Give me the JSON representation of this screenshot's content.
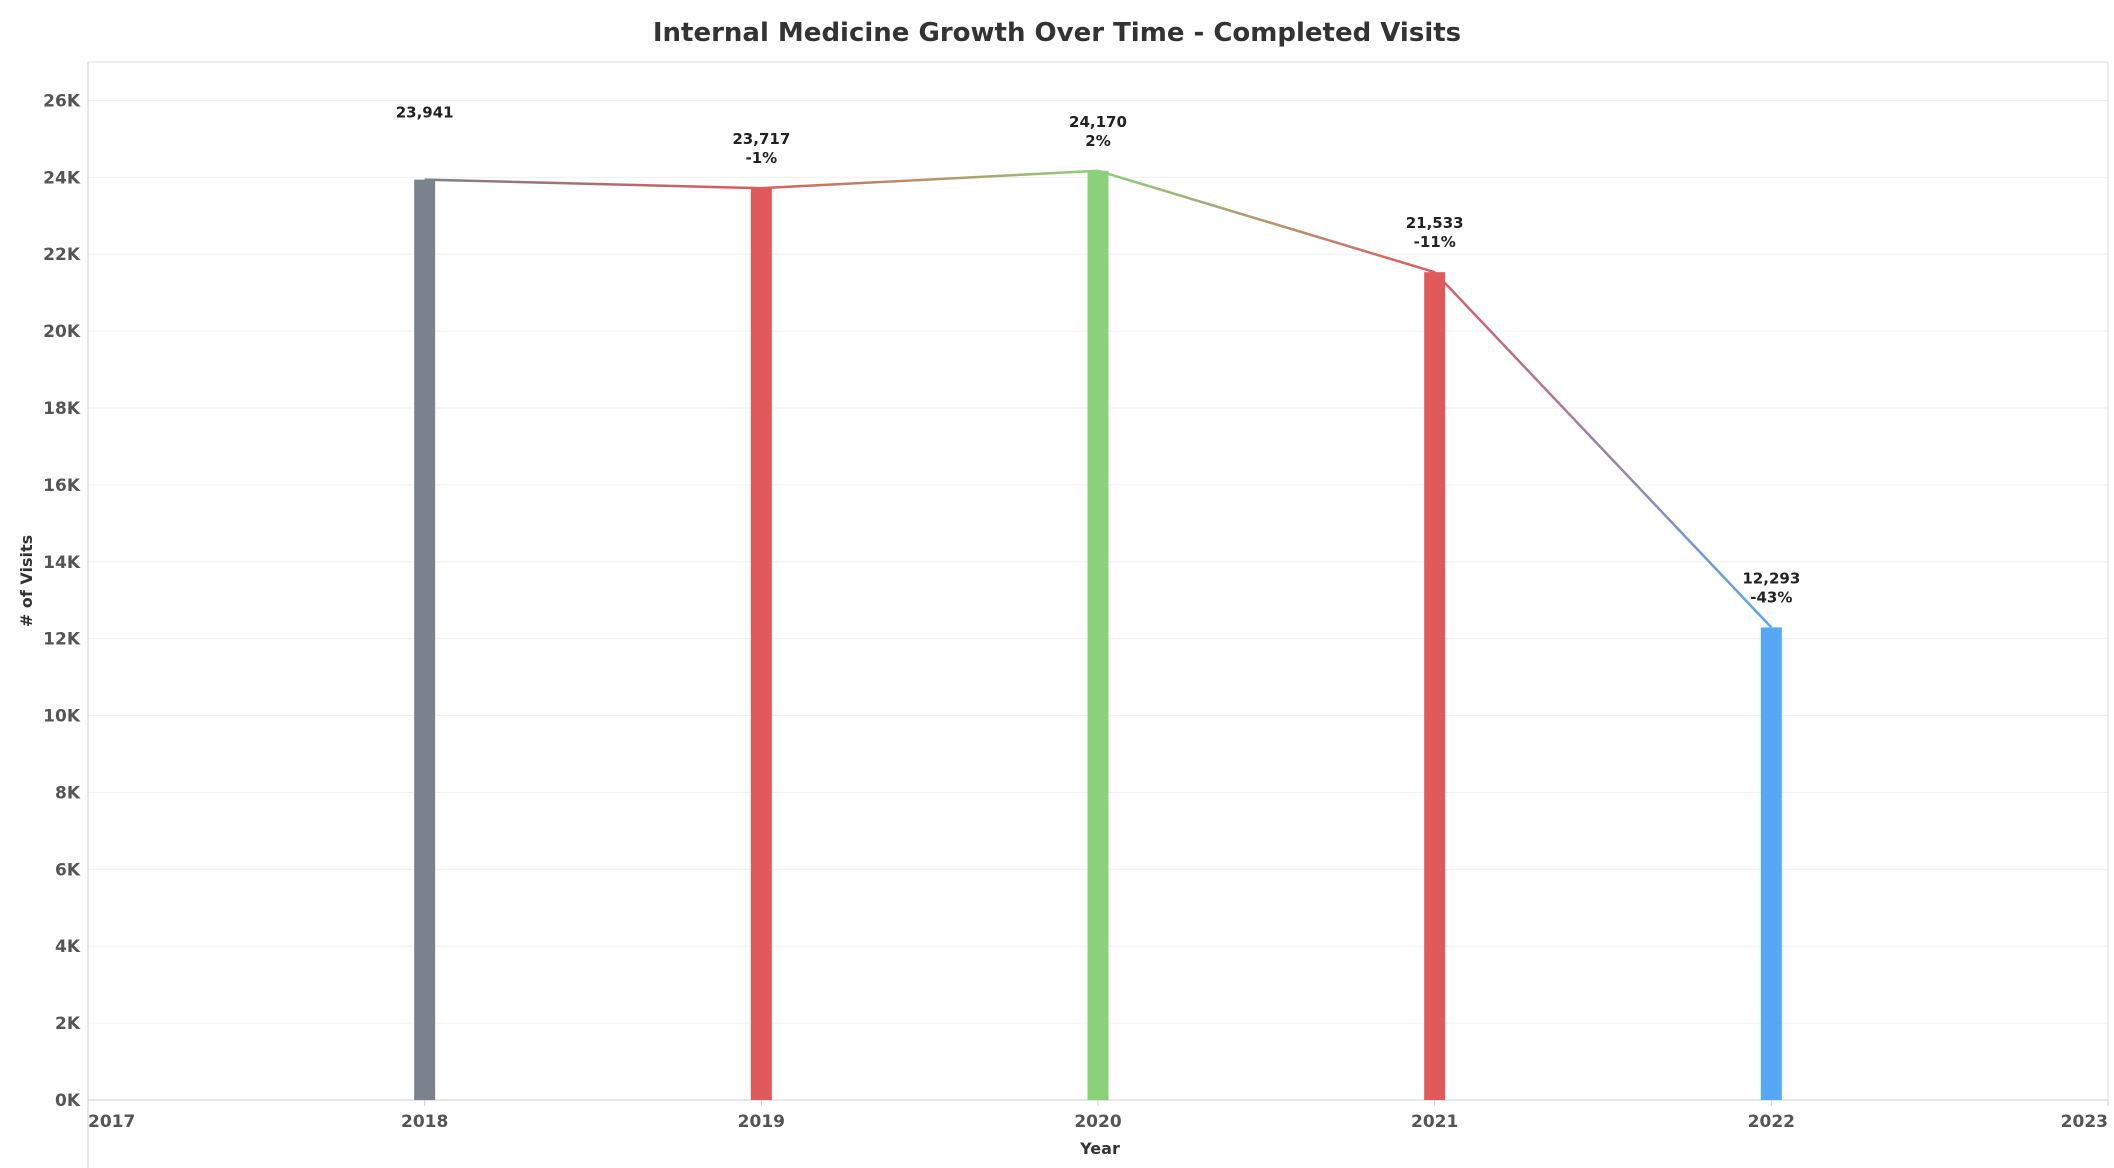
{
  "chart_data": {
    "type": "bar",
    "title": "Internal Medicine Growth Over Time - Completed Visits",
    "xlabel": "Year",
    "ylabel": "# of Visits",
    "x_ticks": [
      "2017",
      "2018",
      "2019",
      "2020",
      "2021",
      "2022",
      "2023"
    ],
    "y_ticks": [
      "0K",
      "2K",
      "4K",
      "6K",
      "8K",
      "10K",
      "12K",
      "14K",
      "16K",
      "18K",
      "20K",
      "22K",
      "24K",
      "26K"
    ],
    "ylim": [
      0,
      27000
    ],
    "xlim": [
      2017,
      2023
    ],
    "grid": true,
    "legend": "none",
    "series": [
      {
        "values": [
          {
            "x": 2018,
            "y": 23941,
            "value_label": "23,941",
            "change_label": "",
            "color": "#7a828d"
          },
          {
            "x": 2019,
            "y": 23717,
            "value_label": "23,717",
            "change_label": "-1%",
            "color": "#e05a5c"
          },
          {
            "x": 2020,
            "y": 24170,
            "value_label": "24,170",
            "change_label": "2%",
            "color": "#8bd17c"
          },
          {
            "x": 2021,
            "y": 21533,
            "value_label": "21,533",
            "change_label": "-11%",
            "color": "#e05a5c"
          },
          {
            "x": 2022,
            "y": 12293,
            "value_label": "12,293",
            "change_label": "-43%",
            "color": "#56a8f5"
          }
        ]
      }
    ]
  }
}
